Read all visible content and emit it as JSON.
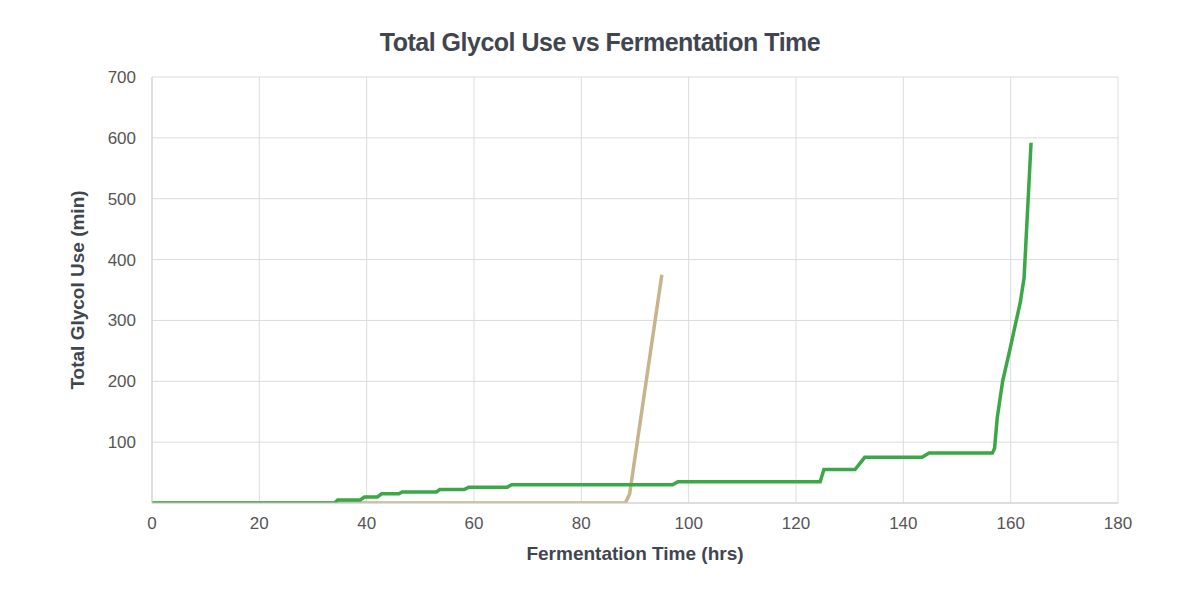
{
  "chart_data": {
    "type": "line",
    "title": "Total Glycol Use vs Fermentation Time",
    "xlabel": "Fermentation Time (hrs)",
    "ylabel": "Total Glycol Use (min)",
    "series": [
      {
        "color": "#c8b48c",
        "x": [
          0,
          88.2,
          89,
          95
        ],
        "values": [
          0,
          0,
          15,
          375
        ]
      },
      {
        "color": "#3aa847",
        "x": [
          0,
          34,
          34.6,
          38.8,
          39.6,
          42,
          42.8,
          46,
          46.6,
          53,
          53.6,
          58.2,
          59,
          66.2,
          67,
          97,
          98,
          124.5,
          125.2,
          131,
          132.8,
          143.5,
          144.8,
          156.6,
          157,
          157.5,
          158.5,
          159.8,
          161.8,
          162.5,
          163.8
        ],
        "values": [
          0,
          0,
          5,
          5,
          10,
          10,
          15,
          15,
          18,
          18,
          22,
          22,
          26,
          26,
          30,
          30,
          35,
          35,
          55,
          55,
          75,
          75,
          82,
          82,
          90,
          140,
          200,
          250,
          330,
          370,
          592
        ]
      }
    ],
    "xlim": [
      0,
      180
    ],
    "xticks": [
      0,
      20,
      40,
      60,
      80,
      100,
      120,
      140,
      160,
      180
    ],
    "ylim": [
      0,
      700
    ],
    "yticks": [
      100,
      200,
      300,
      400,
      500,
      600,
      700
    ],
    "grid": true
  }
}
